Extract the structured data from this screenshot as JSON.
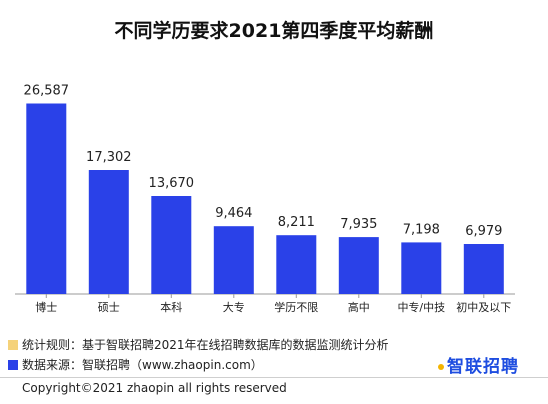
{
  "chart_data": {
    "type": "bar",
    "title": "不同学历要求2021第四季度平均薪酬",
    "categories": [
      "博士",
      "硕士",
      "本科",
      "大专",
      "学历不限",
      "高中",
      "中专/中技",
      "初中及以下"
    ],
    "values": [
      26587,
      17302,
      13670,
      9464,
      8211,
      7935,
      7198,
      6979
    ],
    "value_labels": [
      "26,587",
      "17,302",
      "13,670",
      "9,464",
      "8,211",
      "7,935",
      "7,198",
      "6,979"
    ],
    "ylim": [
      0,
      30000
    ],
    "grid": false,
    "legend": "none",
    "bar_color": "#2a41e8"
  },
  "notes": {
    "rule": "统计规则：基于智联招聘2021年在线招聘数据库的数据监测统计分析",
    "rule_color": "#f5d27a",
    "source": "数据来源：智联招聘（www.zhaopin.com）",
    "source_color": "#2a41e8"
  },
  "logo": {
    "text": "智联招聘",
    "color": "#1e4de0"
  },
  "footer": {
    "copyright": "Copyright©2021 zhaopin all rights reserved"
  }
}
